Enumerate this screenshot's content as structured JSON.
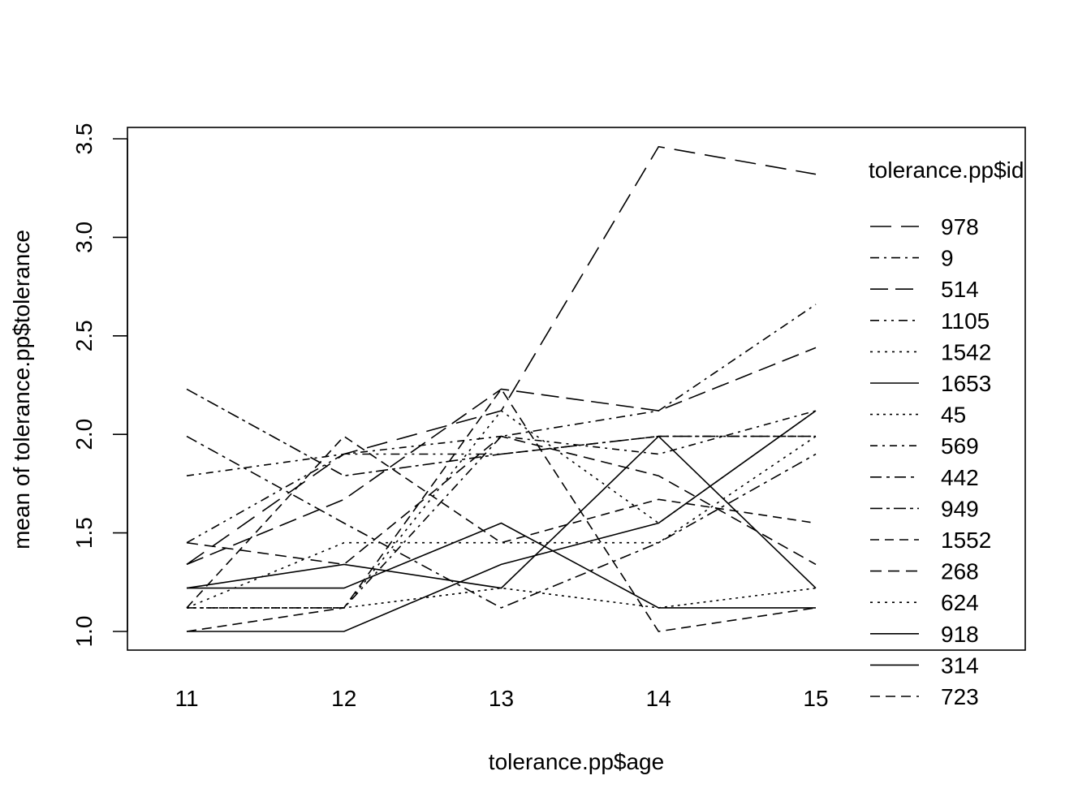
{
  "chart_data": {
    "type": "line",
    "x": [
      11,
      12,
      13,
      14,
      15
    ],
    "xlabel": "tolerance.pp$age",
    "ylabel": "mean of  tolerance.pp$tolerance",
    "xlim": [
      11,
      15
    ],
    "ylim": [
      1.0,
      3.5
    ],
    "x_tick_labels": [
      "11",
      "12",
      "13",
      "14",
      "15"
    ],
    "y_ticks": [
      1.0,
      1.5,
      2.0,
      2.5,
      3.0,
      3.5
    ],
    "y_tick_labels": [
      "1.0",
      "1.5",
      "2.0",
      "2.5",
      "3.0",
      "3.5"
    ],
    "legend": {
      "title": "tolerance.pp$id",
      "placement": "right"
    },
    "grid": false,
    "series": [
      {
        "name": "978",
        "dash": "26,12",
        "values": [
          1.34,
          1.9,
          2.12,
          3.46,
          3.32
        ]
      },
      {
        "name": "9",
        "dash": "11,6,3,6",
        "values": [
          1.12,
          1.12,
          1.99,
          2.12,
          2.66
        ]
      },
      {
        "name": "514",
        "dash": "22,9",
        "values": [
          1.34,
          1.67,
          2.23,
          2.12,
          2.44
        ]
      },
      {
        "name": "1105",
        "dash": "11,6,3,6,3,6",
        "values": [
          1.45,
          1.9,
          1.9,
          1.99,
          1.99
        ]
      },
      {
        "name": "1542",
        "dash": "3,6",
        "values": [
          1.12,
          1.45,
          1.45,
          1.45,
          1.99
        ]
      },
      {
        "name": "1653",
        "dash": "",
        "values": [
          1.22,
          1.22,
          1.55,
          1.12,
          1.12
        ]
      },
      {
        "name": "45",
        "dash": "3,5",
        "values": [
          1.12,
          1.12,
          1.22,
          1.12,
          1.22
        ]
      },
      {
        "name": "569",
        "dash": "9,6,3,6",
        "values": [
          1.79,
          1.9,
          1.99,
          1.9,
          2.12
        ]
      },
      {
        "name": "442",
        "dash": "14,6,4,6",
        "values": [
          1.99,
          1.55,
          1.12,
          1.45,
          1.9
        ]
      },
      {
        "name": "949",
        "dash": "15,5,4,5",
        "values": [
          2.23,
          1.79,
          1.9,
          1.99,
          1.99
        ]
      },
      {
        "name": "1552",
        "dash": "11,7",
        "values": [
          1.12,
          1.99,
          1.45,
          1.67,
          1.55
        ]
      },
      {
        "name": "268",
        "dash": "14,8",
        "values": [
          1.45,
          1.34,
          1.99,
          1.79,
          1.34
        ]
      },
      {
        "name": "624",
        "dash": "3,6",
        "values": [
          1.12,
          1.12,
          2.12,
          1.55,
          2.12
        ]
      },
      {
        "name": "918",
        "dash": "",
        "values": [
          1.22,
          1.34,
          1.22,
          1.99,
          1.22
        ]
      },
      {
        "name": "314",
        "dash": "",
        "values": [
          1.0,
          1.0,
          1.34,
          1.55,
          2.12
        ]
      },
      {
        "name": "723",
        "dash": "12,7",
        "values": [
          1.0,
          1.12,
          2.23,
          1.0,
          1.12
        ]
      }
    ]
  }
}
